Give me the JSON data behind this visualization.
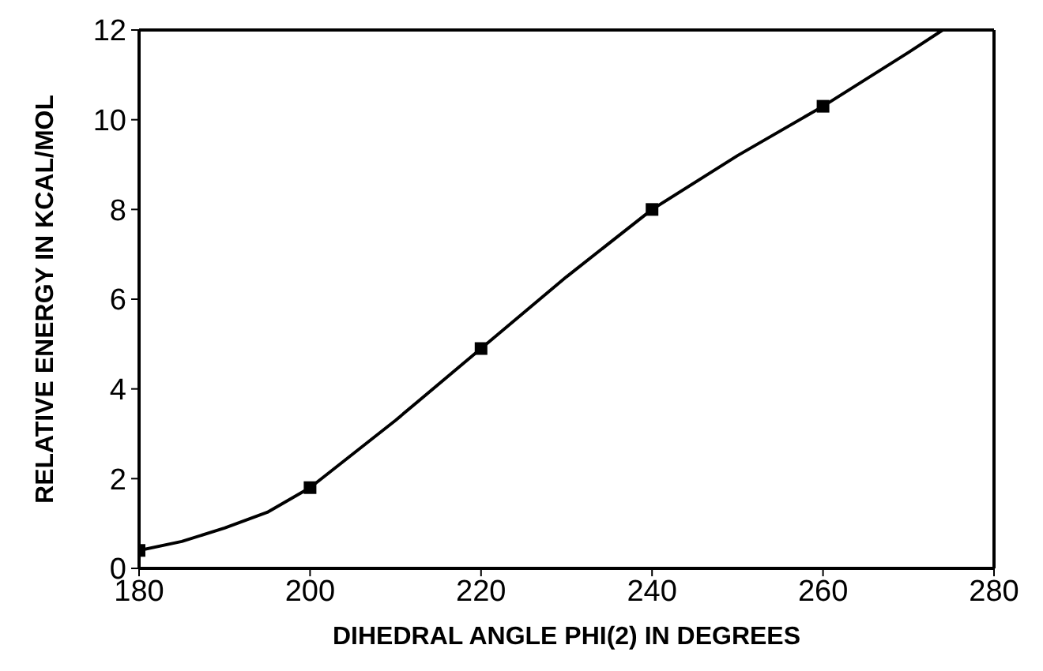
{
  "chart_data": {
    "type": "line",
    "xlabel": "DIHEDRAL ANGLE PHI(2) IN DEGREES",
    "ylabel": "RELATIVE ENERGY IN KCAL/MOL",
    "xlim": [
      180,
      280
    ],
    "xticks": [
      180,
      200,
      220,
      240,
      260,
      280
    ],
    "ylim": [
      0,
      12
    ],
    "yticks": [
      0,
      2,
      4,
      6,
      8,
      10,
      12
    ],
    "grid": false,
    "series": [
      {
        "type": "line",
        "color": "#000000",
        "marker": "none",
        "x": [
          180,
          185,
          190,
          195,
          200,
          210,
          220,
          230,
          240,
          250,
          260,
          270,
          274
        ],
        "values": [
          0.4,
          0.6,
          0.9,
          1.25,
          1.8,
          3.3,
          4.9,
          6.5,
          8.0,
          9.2,
          10.3,
          11.5,
          12
        ]
      },
      {
        "type": "scatter",
        "color": "#000000",
        "marker": "square",
        "x": [
          180,
          200,
          220,
          240,
          260
        ],
        "values": [
          0.4,
          1.8,
          4.9,
          8.0,
          10.3
        ]
      }
    ]
  }
}
